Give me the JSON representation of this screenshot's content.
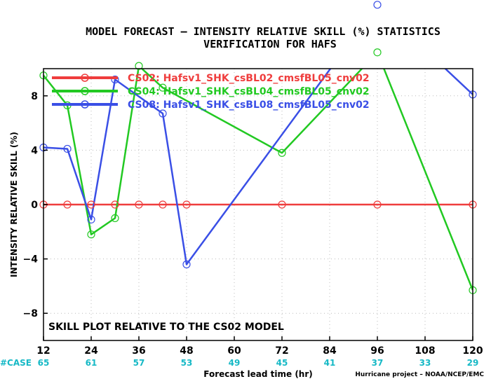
{
  "chart_data": {
    "type": "line",
    "title_line1": "MODEL FORECAST – INTENSITY RELATIVE SKILL (%) STATISTICS",
    "title_line2": "VERIFICATION FOR HAFS",
    "xlabel": "Forecast lead time (hr)",
    "ylabel": "INTENSITY RELATIVE SKILL (%)",
    "annotation": "SKILL PLOT RELATIVE TO THE CS02 MODEL",
    "credit": "Hurricane project – NOAA/NCEP/EMC",
    "xlim": [
      12,
      120
    ],
    "ylim": [
      -10,
      10
    ],
    "x_ticks": [
      12,
      24,
      36,
      48,
      60,
      72,
      84,
      96,
      108,
      120
    ],
    "y_ticks": [
      -8,
      -4,
      0,
      4,
      8
    ],
    "grid": true,
    "case_label": "#CASE",
    "case_counts": [
      65,
      61,
      57,
      53,
      49,
      45,
      41,
      37,
      33,
      29
    ],
    "series": [
      {
        "name": "CS02: Hafsv1_SHK_csBL02_cmsfBL05_cnv02",
        "color": "#ef3d3d",
        "x": [
          12,
          18,
          24,
          30,
          36,
          42,
          48,
          72,
          96,
          120
        ],
        "y": [
          0,
          0,
          0,
          0,
          0,
          0,
          0,
          0,
          0,
          0
        ]
      },
      {
        "name": "CS04: Hafsv1_SHK_csBL04_cmsfBL05_cnv02",
        "color": "#22c922",
        "x": [
          12,
          18,
          24,
          30,
          36,
          42,
          72,
          96,
          120
        ],
        "y": [
          9.5,
          7.3,
          -2.2,
          -1.0,
          10.2,
          8.6,
          3.8,
          11.2,
          -6.3
        ]
      },
      {
        "name": "CS08: Hafsv1_SHK_csBL08_cmsfBL05_cnv02",
        "color": "#3a4fe6",
        "x": [
          12,
          18,
          24,
          30,
          42,
          48,
          96,
          120
        ],
        "y": [
          4.2,
          4.1,
          -1.1,
          9.2,
          6.7,
          -4.4,
          14.7,
          8.1
        ]
      }
    ]
  }
}
